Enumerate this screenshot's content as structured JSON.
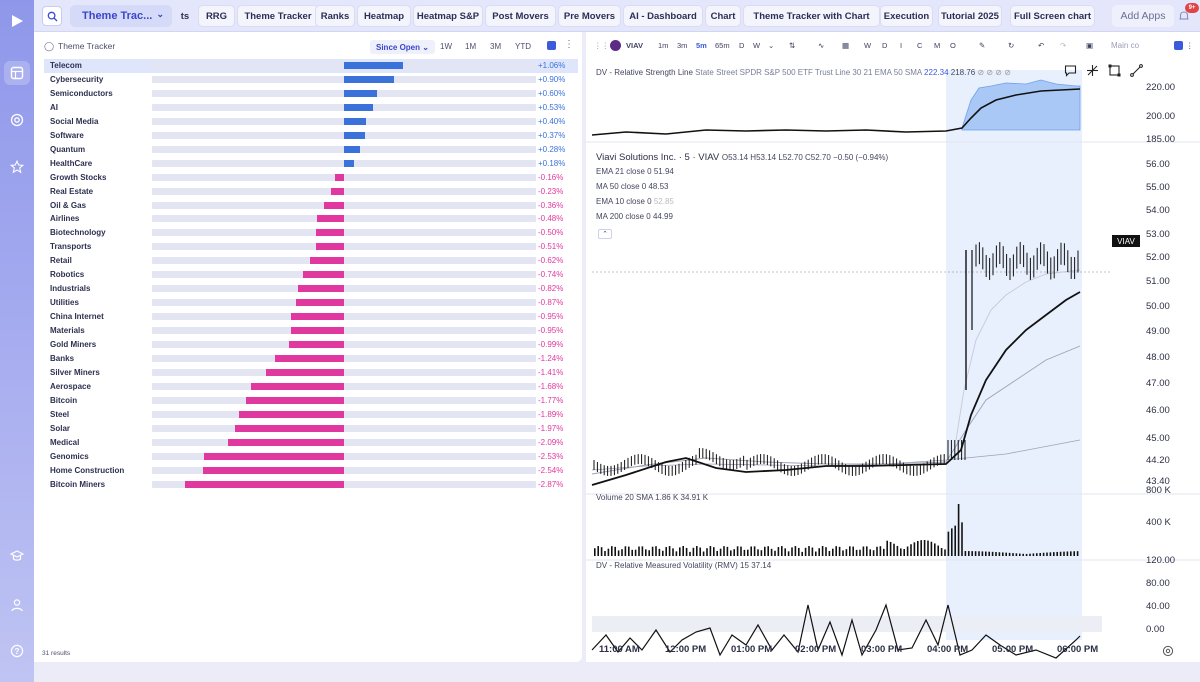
{
  "rail": {
    "icons": [
      "logo-play-icon",
      "dashboard-icon",
      "target-icon",
      "star-icon",
      "graduation-icon",
      "user-icon",
      "help-icon"
    ]
  },
  "topnav": {
    "theme_select": "Theme Trac...",
    "tabs": [
      "ts",
      "RRG",
      "Theme Tracker",
      "Ranks",
      "Heatmap",
      "Heatmap S&P",
      "Post Movers",
      "Pre Movers",
      "AI - Dashboard",
      "Chart",
      "Theme Tracker with Chart",
      "Execution",
      "Tutorial 2025",
      "Full Screen chart"
    ],
    "add_apps": "Add Apps",
    "badge": "9+"
  },
  "ranking": {
    "title": "Theme Tracker",
    "since": "Since Open",
    "ranges": [
      "1W",
      "1M",
      "3M",
      "YTD"
    ],
    "results": "31 results",
    "colors": {
      "positive": "#3b72d9",
      "negative": "#e0389e",
      "track": "#e3e5f3"
    },
    "rows": [
      {
        "label": "Telecom",
        "value": 1.06,
        "pct": "+1.06%"
      },
      {
        "label": "Cybersecurity",
        "value": 0.9,
        "pct": "+0.90%"
      },
      {
        "label": "Semiconductors",
        "value": 0.6,
        "pct": "+0.60%"
      },
      {
        "label": "AI",
        "value": 0.53,
        "pct": "+0.53%"
      },
      {
        "label": "Social Media",
        "value": 0.4,
        "pct": "+0.40%"
      },
      {
        "label": "Software",
        "value": 0.37,
        "pct": "+0.37%"
      },
      {
        "label": "Quantum",
        "value": 0.28,
        "pct": "+0.28%"
      },
      {
        "label": "HealthCare",
        "value": 0.18,
        "pct": "+0.18%"
      },
      {
        "label": "Growth Stocks",
        "value": -0.16,
        "pct": "-0.16%"
      },
      {
        "label": "Real Estate",
        "value": -0.23,
        "pct": "-0.23%"
      },
      {
        "label": "Oil & Gas",
        "value": -0.36,
        "pct": "-0.36%"
      },
      {
        "label": "Airlines",
        "value": -0.48,
        "pct": "-0.48%"
      },
      {
        "label": "Biotechnology",
        "value": -0.5,
        "pct": "-0.50%"
      },
      {
        "label": "Transports",
        "value": -0.51,
        "pct": "-0.51%"
      },
      {
        "label": "Retail",
        "value": -0.62,
        "pct": "-0.62%"
      },
      {
        "label": "Robotics",
        "value": -0.74,
        "pct": "-0.74%"
      },
      {
        "label": "Industrials",
        "value": -0.82,
        "pct": "-0.82%"
      },
      {
        "label": "Utilities",
        "value": -0.87,
        "pct": "-0.87%"
      },
      {
        "label": "China Internet",
        "value": -0.95,
        "pct": "-0.95%"
      },
      {
        "label": "Materials",
        "value": -0.95,
        "pct": "-0.95%"
      },
      {
        "label": "Gold Miners",
        "value": -0.99,
        "pct": "-0.99%"
      },
      {
        "label": "Banks",
        "value": -1.24,
        "pct": "-1.24%"
      },
      {
        "label": "Silver Miners",
        "value": -1.41,
        "pct": "-1.41%"
      },
      {
        "label": "Aerospace",
        "value": -1.68,
        "pct": "-1.68%"
      },
      {
        "label": "Bitcoin",
        "value": -1.77,
        "pct": "-1.77%"
      },
      {
        "label": "Steel",
        "value": -1.89,
        "pct": "-1.89%"
      },
      {
        "label": "Solar",
        "value": -1.97,
        "pct": "-1.97%"
      },
      {
        "label": "Medical",
        "value": -2.09,
        "pct": "-2.09%"
      },
      {
        "label": "Genomics",
        "value": -2.53,
        "pct": "-2.53%"
      },
      {
        "label": "Home Construction",
        "value": -2.54,
        "pct": "-2.54%"
      },
      {
        "label": "Bitcoin Miners",
        "value": -2.87,
        "pct": "-2.87%"
      }
    ]
  },
  "chart": {
    "ticker": "VIAV",
    "timeframes": [
      "1m",
      "3m",
      "5m",
      "65m",
      "D",
      "W"
    ],
    "active_timeframe": "5m",
    "toolbar_letters": [
      "W",
      "D",
      "I",
      "C",
      "M",
      "O"
    ],
    "main_co": "Main co",
    "rs_line": {
      "label": "DV - Relative Strength Line",
      "desc": "State Street SPDR S&P 500 ETF Trust Line 30 21 EMA 50 SMA",
      "val1": "222.34",
      "val2": "218.76",
      "yticks": [
        "220.00",
        "200.00",
        "185.00"
      ]
    },
    "price": {
      "title": "Viavi Solutions Inc. · 5 · VIAV",
      "ohlc": "O53.14 H53.14 L52.70 C52.70 −0.50 (−0.94%)",
      "indicators": [
        {
          "label": "EMA 21 close 0",
          "value": "51.94"
        },
        {
          "label": "MA 50 close 0",
          "value": "48.53"
        },
        {
          "label": "EMA 10 close 0",
          "value": "52.85"
        },
        {
          "label": "MA 200 close 0",
          "value": "44.99"
        }
      ],
      "yticks": [
        "56.00",
        "55.00",
        "54.00",
        "53.00",
        "52.00",
        "51.00",
        "50.00",
        "49.00",
        "48.00",
        "47.00",
        "46.00",
        "45.00",
        "44.20",
        "43.40"
      ],
      "last_tag": "VIAV"
    },
    "volume": {
      "label": "Volume 20 SMA",
      "v1": "1.86 K",
      "v2": "34.91 K",
      "yticks": [
        "800 K",
        "400 K"
      ]
    },
    "rmv": {
      "label": "DV - Relative Measured Volatility (RMV) 15",
      "value": "37.14",
      "yticks": [
        "120.00",
        "80.00",
        "40.00",
        "0.00"
      ]
    },
    "xticks": [
      "11:00 AM",
      "12:00 PM",
      "01:00 PM",
      "02:00 PM",
      "03:00 PM",
      "04:00 PM",
      "05:00 PM",
      "06:00 PM"
    ]
  }
}
